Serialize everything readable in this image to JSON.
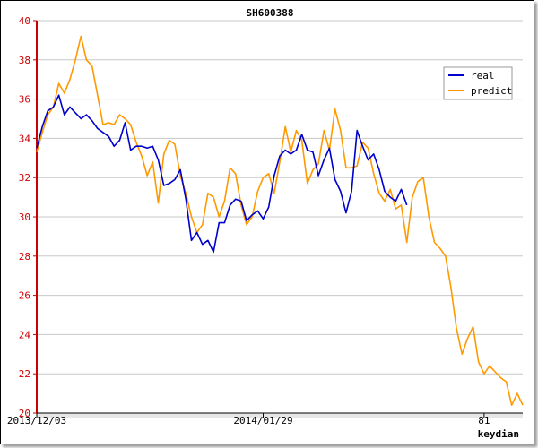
{
  "chart_data": {
    "type": "line",
    "title": "SH600388",
    "xlabel": "keydian",
    "ylabel": "",
    "ylim": [
      20,
      40
    ],
    "yticks": [
      20,
      22,
      24,
      26,
      28,
      30,
      32,
      34,
      36,
      38,
      40
    ],
    "xlim": [
      0,
      88
    ],
    "xticks": [
      {
        "x": 0,
        "label": "2013/12/03"
      },
      {
        "x": 41,
        "label": "2014/01/29"
      },
      {
        "x": 81,
        "label": "81"
      }
    ],
    "grid": true,
    "legend_position": "top-right",
    "series": [
      {
        "name": "real",
        "color": "#0000cc",
        "values": [
          33.5,
          34.6,
          35.4,
          35.6,
          36.2,
          35.2,
          35.6,
          35.3,
          35.0,
          35.2,
          34.9,
          34.5,
          34.3,
          34.1,
          33.6,
          33.9,
          34.8,
          33.4,
          33.6,
          33.6,
          33.5,
          33.6,
          32.9,
          31.6,
          31.7,
          31.9,
          32.4,
          30.9,
          28.8,
          29.2,
          28.6,
          28.8,
          28.2,
          29.7,
          29.7,
          30.6,
          30.9,
          30.8,
          29.8,
          30.1,
          30.3,
          29.9,
          30.5,
          32.1,
          33.1,
          33.4,
          33.2,
          33.4,
          34.2,
          33.4,
          33.3,
          32.1,
          32.9,
          33.5,
          31.9,
          31.3,
          30.2,
          31.3,
          34.4,
          33.6,
          32.9,
          33.2,
          32.4,
          31.3,
          31.0,
          30.8,
          31.4,
          30.6
        ],
        "projected": false
      },
      {
        "name": "predict",
        "color": "#ff9900",
        "values": [
          33.3,
          34.3,
          35.2,
          35.6,
          36.8,
          36.3,
          37.0,
          38.0,
          39.2,
          38.0,
          37.7,
          36.2,
          34.7,
          34.8,
          34.7,
          35.2,
          35.0,
          34.7,
          33.8,
          33.1,
          32.1,
          32.8,
          30.7,
          33.2,
          33.9,
          33.7,
          32.1,
          31.2,
          30.0,
          29.2,
          29.6,
          31.2,
          31.0,
          30.0,
          30.8,
          32.5,
          32.2,
          30.6,
          29.6,
          30.0,
          31.3,
          32.0,
          32.2,
          31.2,
          32.8,
          34.6,
          33.3,
          34.4,
          33.9,
          31.7,
          32.4,
          32.7,
          34.4,
          33.4,
          35.5,
          34.4,
          32.5,
          32.5,
          32.6,
          33.8,
          33.5,
          32.2,
          31.2,
          30.8,
          31.4,
          30.4,
          30.6,
          28.7,
          31.0,
          31.8,
          32.0,
          30.0,
          28.7,
          28.4,
          28.0,
          26.4,
          24.3,
          23.0,
          23.8,
          24.4,
          22.6,
          22.0,
          22.4,
          22.1,
          21.8,
          21.6,
          20.4,
          21.0,
          20.4
        ]
      }
    ]
  }
}
